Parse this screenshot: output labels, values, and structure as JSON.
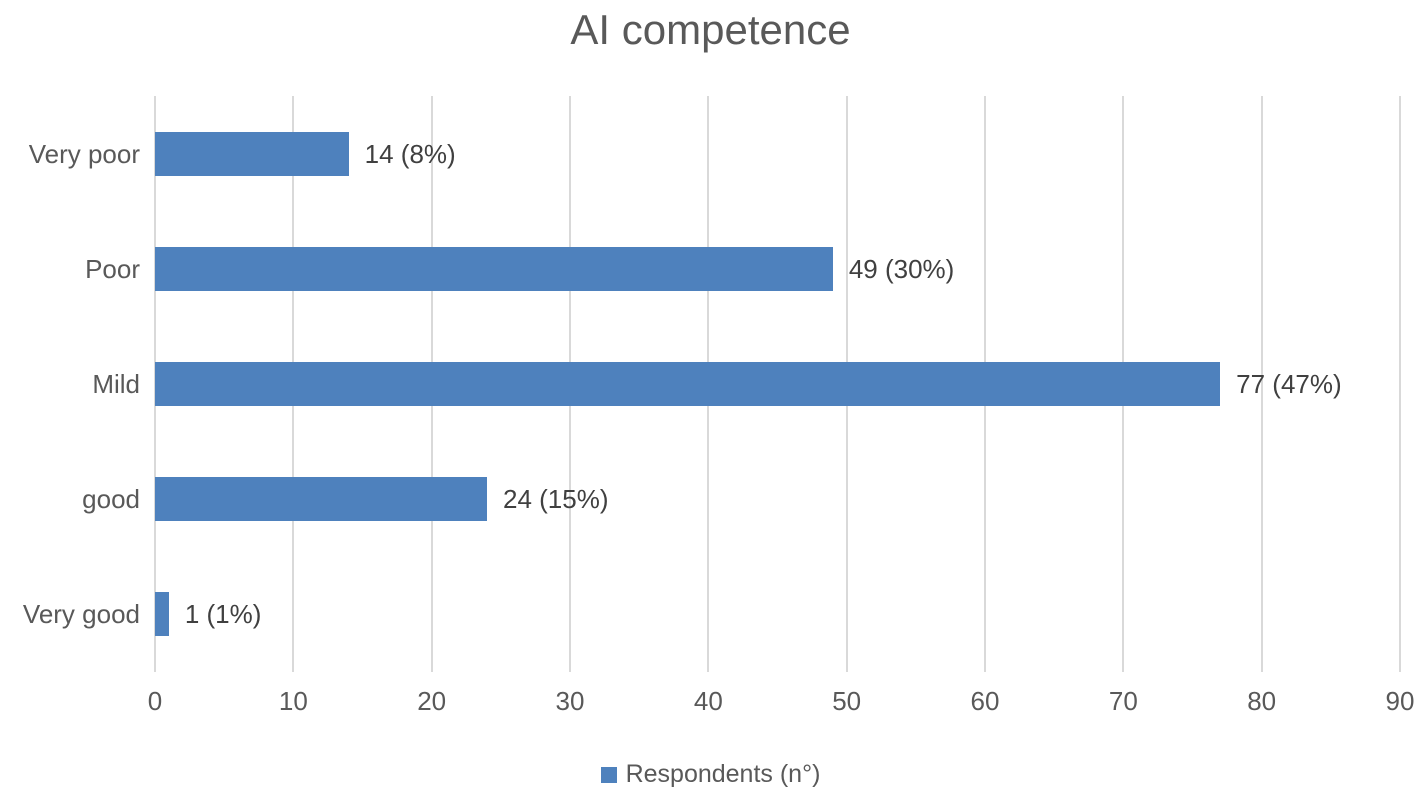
{
  "chart_data": {
    "type": "bar",
    "orientation": "horizontal",
    "title": "AI competence",
    "categories": [
      "Very poor",
      "Poor",
      "Mild",
      "good",
      "Very good"
    ],
    "values": [
      14,
      49,
      77,
      24,
      1
    ],
    "data_labels": [
      "14 (8%)",
      "49 (30%)",
      "77 (47%)",
      "24 (15%)",
      "1 (1%)"
    ],
    "series": [
      {
        "name": "Respondents (n°)",
        "values": [
          14,
          49,
          77,
          24,
          1
        ]
      }
    ],
    "xlabel": "",
    "ylabel": "",
    "xlim": [
      0,
      90
    ],
    "x_ticks": [
      0,
      10,
      20,
      30,
      40,
      50,
      60,
      70,
      80,
      90
    ],
    "grid": true,
    "legend_position": "bottom",
    "colors": {
      "bar": "#4E81BD",
      "gridline": "#D9D9D9",
      "title_text": "#595959",
      "axis_text": "#595959",
      "data_label_text": "#404040"
    }
  },
  "legend": {
    "label": "Respondents (n°)"
  }
}
